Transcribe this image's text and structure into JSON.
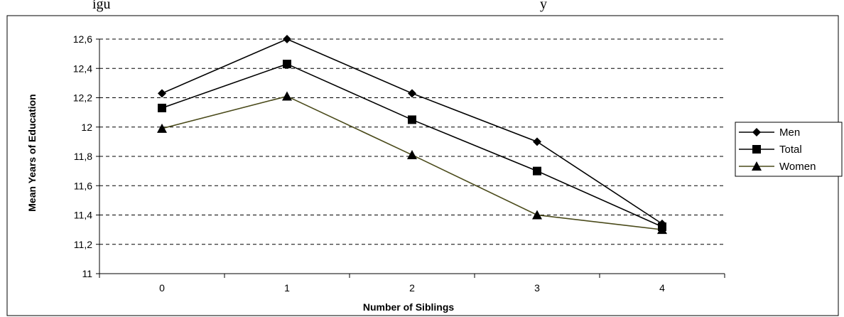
{
  "caption_fragment": {
    "left": "igu",
    "right": "y"
  },
  "chart_data": {
    "type": "line",
    "title": "",
    "xlabel": "Number of Siblings",
    "ylabel": "Mean Years of Education",
    "categories": [
      "0",
      "1",
      "2",
      "3",
      "4"
    ],
    "ylim": [
      11,
      12.6
    ],
    "yticks": [
      11,
      11.2,
      11.4,
      11.6,
      11.8,
      12,
      12.2,
      12.4,
      12.6
    ],
    "ytick_labels": [
      "11",
      "11,2",
      "11,4",
      "11,6",
      "11,8",
      "12",
      "12,2",
      "12,4",
      "12,6"
    ],
    "grid": "horizontal dashed",
    "legend_position": "right",
    "series": [
      {
        "name": "Men",
        "values": [
          12.23,
          12.6,
          12.23,
          11.9,
          11.34
        ],
        "marker": "diamond",
        "color": "#000000"
      },
      {
        "name": "Total",
        "values": [
          12.13,
          12.43,
          12.05,
          11.7,
          11.32
        ],
        "marker": "square",
        "color": "#000000"
      },
      {
        "name": "Women",
        "values": [
          11.99,
          12.21,
          11.81,
          11.4,
          11.3
        ],
        "marker": "triangle",
        "color": "#4a4a1a"
      }
    ]
  }
}
